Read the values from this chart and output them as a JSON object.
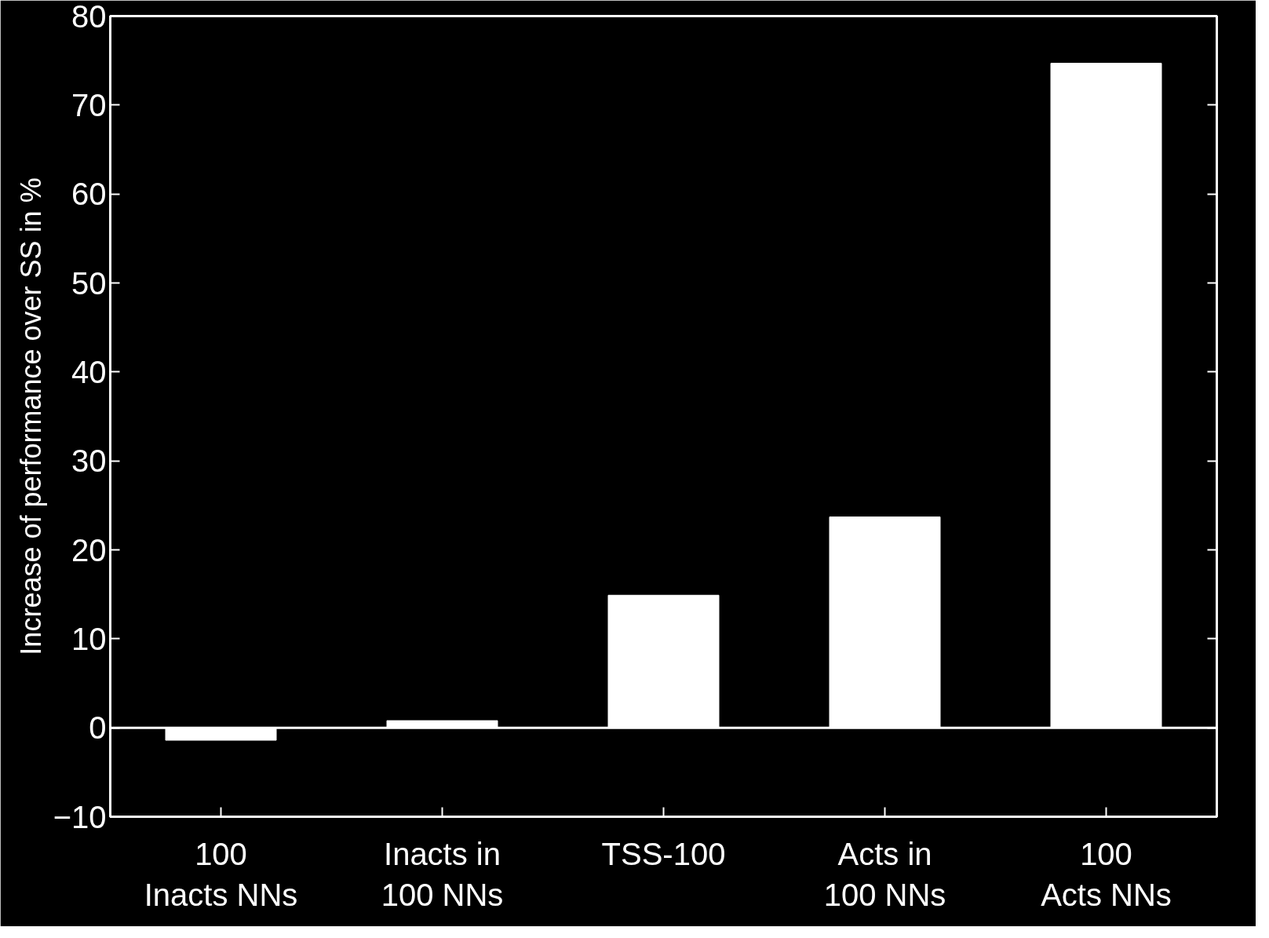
{
  "chart_data": {
    "type": "bar",
    "ylabel": "Increase of performance over SS in %",
    "categories": [
      "100\nInacts NNs",
      "Inacts in\n100 NNs",
      "TSS-100",
      "Acts in\n100 NNs",
      "100\nActs NNs"
    ],
    "values": [
      -1.4,
      0.8,
      14.9,
      23.7,
      74.7
    ],
    "color": "#ffffff",
    "ylim": [
      -10,
      80
    ],
    "yticks": [
      -10,
      0,
      10,
      20,
      30,
      40,
      50,
      60,
      70,
      80
    ],
    "ref_lines": [
      {
        "axis": "y",
        "value": 0,
        "color": "#ffffff"
      }
    ],
    "grid": false
  }
}
